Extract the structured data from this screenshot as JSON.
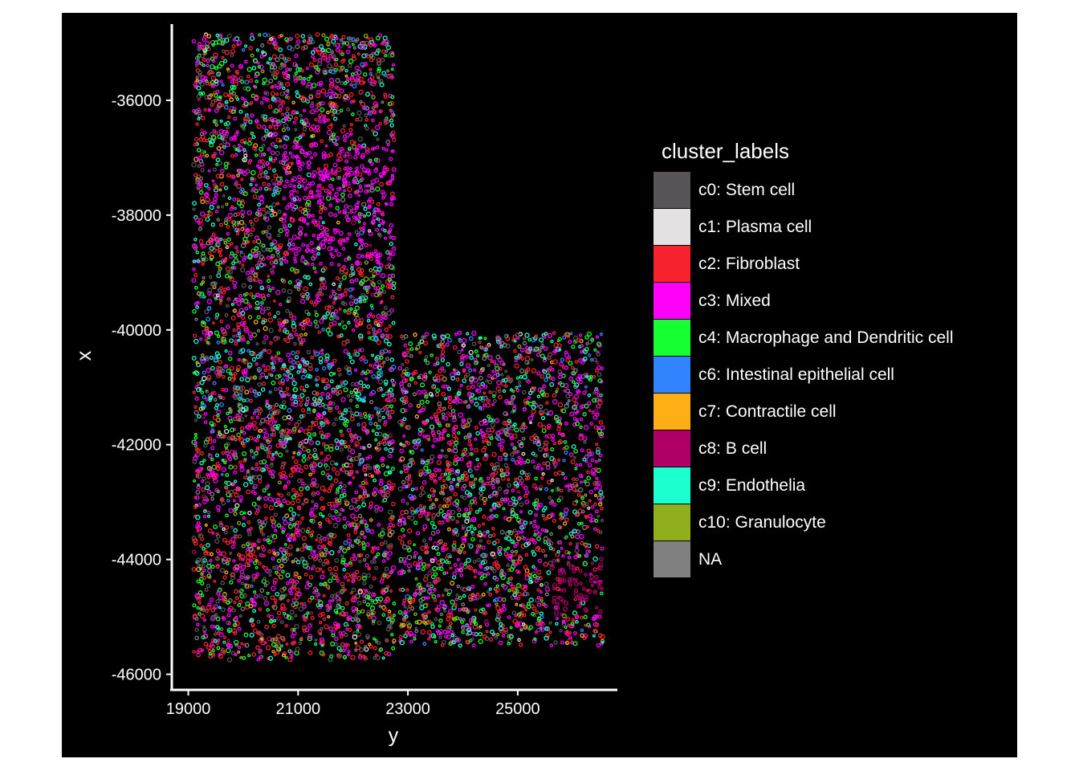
{
  "chart_data": {
    "type": "scatter",
    "title": "",
    "xlabel": "y",
    "ylabel": "x",
    "xlim": [
      18700,
      26800
    ],
    "ylim": [
      -46300,
      -34700
    ],
    "x_ticks": [
      "19000",
      "21000",
      "23000",
      "25000"
    ],
    "x_tick_values": [
      19000,
      21000,
      23000,
      25000
    ],
    "y_ticks": [
      "-36000",
      "-38000",
      "-40000",
      "-42000",
      "-44000",
      "-46000"
    ],
    "y_tick_values": [
      -36000,
      -38000,
      -40000,
      -42000,
      -44000,
      -46000
    ],
    "background": "#000000",
    "grid": false,
    "legend_position": "right",
    "legend_title": "cluster_labels",
    "series": [
      {
        "name": "c0: Stem cell",
        "color": "#595457"
      },
      {
        "name": "c1: Plasma cell",
        "color": "#E4E1E3"
      },
      {
        "name": "c2: Fibroblast",
        "color": "#F6222E"
      },
      {
        "name": "c3: Mixed",
        "color": "#FE00FA"
      },
      {
        "name": "c4: Macrophage and Dendritic cell",
        "color": "#16FF32"
      },
      {
        "name": "c6: Intestinal epithelial cell",
        "color": "#3283FE"
      },
      {
        "name": "c7: Contractile cell",
        "color": "#FEAF16"
      },
      {
        "name": "c8: B cell",
        "color": "#B00068"
      },
      {
        "name": "c9: Endothelia",
        "color": "#1CFFCE"
      },
      {
        "name": "c10: Granulocyte",
        "color": "#90AD1C"
      },
      {
        "name": "NA",
        "color": "#808080"
      }
    ],
    "tiles": [
      {
        "y_range": [
          19100,
          22750
        ],
        "x_range": [
          -40250,
          -34850
        ]
      },
      {
        "y_range": [
          19100,
          22750
        ],
        "x_range": [
          -45750,
          -40350
        ]
      },
      {
        "y_range": [
          22850,
          26550
        ],
        "x_range": [
          -45500,
          -40050
        ]
      }
    ]
  }
}
